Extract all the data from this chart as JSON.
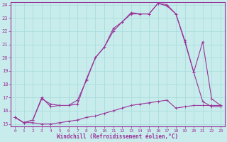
{
  "xlabel": "Windchill (Refroidissement éolien,°C)",
  "bg_color": "#c8ecec",
  "line_color": "#993399",
  "grid_color": "#aadddd",
  "xlim": [
    -0.5,
    23.5
  ],
  "ylim": [
    14.8,
    24.2
  ],
  "xticks": [
    0,
    1,
    2,
    3,
    4,
    5,
    6,
    7,
    8,
    9,
    10,
    11,
    12,
    13,
    14,
    15,
    16,
    17,
    18,
    19,
    20,
    21,
    22,
    23
  ],
  "yticks": [
    15,
    16,
    17,
    18,
    19,
    20,
    21,
    22,
    23,
    24
  ],
  "line1_x": [
    0,
    1,
    2,
    3,
    4,
    5,
    6,
    7,
    8,
    9,
    10,
    11,
    12,
    13,
    14,
    15,
    16,
    17,
    18,
    19,
    20,
    21,
    22,
    23
  ],
  "line1_y": [
    15.5,
    15.1,
    15.1,
    15.0,
    15.0,
    15.1,
    15.2,
    15.3,
    15.5,
    15.6,
    15.8,
    16.0,
    16.2,
    16.4,
    16.5,
    16.6,
    16.7,
    16.8,
    16.2,
    16.3,
    16.4,
    16.4,
    16.4,
    16.4
  ],
  "line2_x": [
    0,
    1,
    2,
    3,
    4,
    5,
    6,
    7,
    8,
    9,
    10,
    11,
    12,
    13,
    14,
    15,
    16,
    17,
    18,
    19,
    20,
    21,
    22,
    23
  ],
  "line2_y": [
    15.5,
    15.1,
    15.3,
    16.9,
    16.5,
    16.4,
    16.4,
    16.8,
    18.3,
    20.0,
    20.8,
    22.0,
    22.7,
    23.3,
    23.3,
    23.3,
    24.1,
    23.9,
    23.3,
    21.2,
    18.9,
    16.7,
    16.3,
    16.3
  ],
  "line3_x": [
    0,
    1,
    2,
    3,
    4,
    5,
    6,
    7,
    8,
    9,
    10,
    11,
    12,
    13,
    14,
    15,
    16,
    17,
    18,
    19,
    20,
    21,
    22,
    23
  ],
  "line3_y": [
    15.5,
    15.1,
    15.3,
    17.0,
    16.3,
    16.4,
    16.4,
    16.5,
    18.4,
    20.0,
    20.8,
    22.2,
    22.7,
    23.4,
    23.3,
    23.3,
    24.1,
    24.0,
    23.3,
    21.3,
    18.9,
    21.2,
    16.9,
    16.4
  ]
}
